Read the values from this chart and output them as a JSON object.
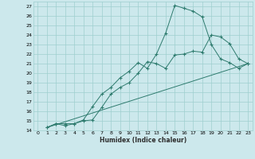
{
  "xlabel": "Humidex (Indice chaleur)",
  "bg_color": "#cce8ec",
  "grid_color": "#9fcfcf",
  "line_color": "#2e7b6e",
  "xlim": [
    -0.5,
    23.5
  ],
  "ylim": [
    14,
    27.5
  ],
  "xticks": [
    0,
    1,
    2,
    3,
    4,
    5,
    6,
    7,
    8,
    9,
    10,
    11,
    12,
    13,
    14,
    15,
    16,
    17,
    18,
    19,
    20,
    21,
    22,
    23
  ],
  "yticks": [
    14,
    15,
    16,
    17,
    18,
    19,
    20,
    21,
    22,
    23,
    24,
    25,
    26,
    27
  ],
  "line_straight": {
    "x": [
      1,
      23
    ],
    "y": [
      14.3,
      21.0
    ]
  },
  "line_upper": {
    "x": [
      1,
      2,
      3,
      4,
      5,
      6,
      7,
      8,
      9,
      10,
      11,
      12,
      13,
      14,
      15,
      16,
      17,
      18,
      19,
      20,
      21,
      22,
      23
    ],
    "y": [
      14.3,
      14.7,
      14.7,
      14.7,
      15.1,
      16.5,
      17.8,
      18.5,
      19.5,
      20.2,
      21.1,
      20.5,
      22.0,
      24.2,
      27.1,
      26.8,
      26.5,
      25.9,
      23.0,
      21.5,
      21.1,
      20.5,
      21.0
    ]
  },
  "line_middle": {
    "x": [
      1,
      2,
      3,
      4,
      5,
      6,
      7,
      8,
      9,
      10,
      11,
      12,
      13,
      14,
      15,
      16,
      17,
      18,
      19,
      20,
      21,
      22,
      23
    ],
    "y": [
      14.3,
      14.7,
      14.5,
      14.7,
      15.0,
      15.1,
      16.4,
      17.8,
      18.5,
      19.0,
      20.0,
      21.2,
      21.0,
      20.5,
      21.9,
      22.0,
      22.3,
      22.2,
      24.0,
      23.8,
      23.1,
      21.5,
      21.0
    ]
  }
}
